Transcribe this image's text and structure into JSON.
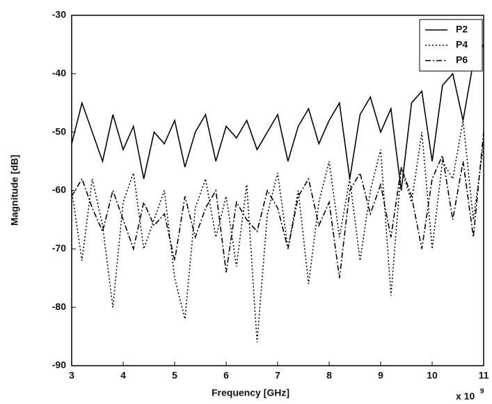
{
  "chart_data": {
    "type": "line",
    "xlabel": "Frequency [GHz]",
    "ylabel": "Magnitude [dB]",
    "x_multiplier": "x 10",
    "x_exponent": "9",
    "x": [
      3,
      3.2,
      3.4,
      3.6,
      3.8,
      4,
      4.2,
      4.4,
      4.6,
      4.8,
      5,
      5.2,
      5.4,
      5.6,
      5.8,
      6,
      6.2,
      6.4,
      6.6,
      6.8,
      7,
      7.2,
      7.4,
      7.6,
      7.8,
      8,
      8.2,
      8.4,
      8.6,
      8.8,
      9,
      9.2,
      9.4,
      9.6,
      9.8,
      10,
      10.2,
      10.4,
      10.6,
      10.8,
      11
    ],
    "series": [
      {
        "name": "P2",
        "color": "#000000",
        "dash": "solid",
        "values": [
          -52,
          -45,
          -50,
          -55,
          -47,
          -53,
          -49,
          -58,
          -50,
          -52,
          -48,
          -56,
          -50,
          -47,
          -55,
          -49,
          -51,
          -48,
          -53,
          -50,
          -47,
          -55,
          -49,
          -46,
          -52,
          -48,
          -45,
          -58,
          -47,
          -44,
          -50,
          -46,
          -60,
          -45,
          -43,
          -55,
          -42,
          -40,
          -48,
          -38,
          -35
        ]
      },
      {
        "name": "P4",
        "color": "#000000",
        "dash": "dotted",
        "values": [
          -60,
          -72,
          -58,
          -66,
          -80,
          -62,
          -57,
          -70,
          -65,
          -60,
          -75,
          -82,
          -63,
          -58,
          -68,
          -61,
          -73,
          -59,
          -86,
          -64,
          -57,
          -70,
          -60,
          -76,
          -62,
          -55,
          -68,
          -58,
          -72,
          -60,
          -53,
          -78,
          -56,
          -62,
          -50,
          -70,
          -55,
          -58,
          -48,
          -65,
          -52
        ]
      },
      {
        "name": "P6",
        "color": "#000000",
        "dash": "dashdot",
        "values": [
          -61,
          -58,
          -63,
          -67,
          -60,
          -65,
          -70,
          -62,
          -66,
          -64,
          -72,
          -61,
          -68,
          -63,
          -60,
          -74,
          -62,
          -65,
          -67,
          -60,
          -63,
          -70,
          -61,
          -58,
          -66,
          -62,
          -75,
          -60,
          -57,
          -64,
          -59,
          -68,
          -56,
          -61,
          -70,
          -58,
          -54,
          -65,
          -55,
          -68,
          -50
        ]
      }
    ],
    "xlim": [
      3,
      11
    ],
    "xticks": [
      3,
      4,
      5,
      6,
      7,
      8,
      9,
      10,
      11
    ],
    "ylim": [
      -90,
      -30
    ],
    "yticks": [
      -90,
      -80,
      -70,
      -60,
      -50,
      -40,
      -30
    ],
    "grid": false,
    "legend": "top-right"
  }
}
